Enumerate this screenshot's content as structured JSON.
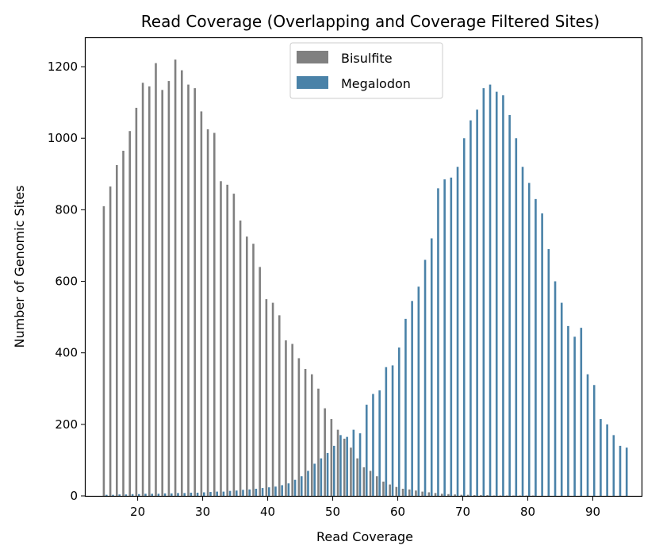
{
  "chart_data": {
    "type": "bar",
    "title": "Read Coverage (Overlapping and Coverage Filtered Sites)",
    "xlabel": "Read Coverage",
    "ylabel": "Number of Genomic Sites",
    "xlim": [
      12,
      97.5
    ],
    "ylim": [
      0,
      1280
    ],
    "xticks": [
      20,
      30,
      40,
      50,
      60,
      70,
      80,
      90
    ],
    "yticks": [
      0,
      200,
      400,
      600,
      800,
      1000,
      1200
    ],
    "grid": false,
    "legend_position": "top-center",
    "series": [
      {
        "name": "Bisulfite",
        "color": "#808080",
        "x": [
          15,
          16,
          17,
          18,
          19,
          20,
          21,
          22,
          23,
          24,
          25,
          26,
          27,
          28,
          29,
          30,
          31,
          32,
          33,
          34,
          35,
          36,
          37,
          38,
          39,
          40,
          41,
          42,
          43,
          44,
          45,
          46,
          47,
          48,
          49,
          50,
          51,
          52,
          53,
          54,
          55,
          56,
          57,
          58,
          59,
          60,
          61,
          62,
          63,
          64,
          65,
          66,
          67,
          68,
          69,
          70,
          71,
          72,
          73,
          74,
          75,
          76,
          77,
          78,
          79,
          80,
          81,
          82,
          83,
          84,
          85,
          86,
          87,
          88,
          89,
          90,
          91,
          92,
          93,
          94,
          95
        ],
        "values": [
          810,
          865,
          925,
          965,
          1020,
          1085,
          1155,
          1145,
          1210,
          1135,
          1160,
          1220,
          1190,
          1150,
          1140,
          1075,
          1025,
          1015,
          880,
          870,
          845,
          770,
          725,
          705,
          640,
          550,
          540,
          505,
          435,
          425,
          385,
          355,
          340,
          300,
          245,
          215,
          185,
          160,
          135,
          105,
          80,
          70,
          55,
          40,
          32,
          25,
          20,
          18,
          15,
          12,
          10,
          8,
          6,
          5,
          4,
          3,
          3,
          2,
          2,
          2,
          1,
          1,
          1,
          1,
          1,
          1,
          1,
          0,
          0,
          0,
          0,
          0,
          0,
          0,
          0,
          0,
          0,
          0,
          0,
          0,
          0
        ]
      },
      {
        "name": "Megalodon",
        "color": "#4a82a8",
        "x": [
          15,
          16,
          17,
          18,
          19,
          20,
          21,
          22,
          23,
          24,
          25,
          26,
          27,
          28,
          29,
          30,
          31,
          32,
          33,
          34,
          35,
          36,
          37,
          38,
          39,
          40,
          41,
          42,
          43,
          44,
          45,
          46,
          47,
          48,
          49,
          50,
          51,
          52,
          53,
          54,
          55,
          56,
          57,
          58,
          59,
          60,
          61,
          62,
          63,
          64,
          65,
          66,
          67,
          68,
          69,
          70,
          71,
          72,
          73,
          74,
          75,
          76,
          77,
          78,
          79,
          80,
          81,
          82,
          83,
          84,
          85,
          86,
          87,
          88,
          89,
          90,
          91,
          92,
          93,
          94,
          95
        ],
        "values": [
          3,
          3,
          4,
          4,
          5,
          5,
          6,
          6,
          6,
          7,
          7,
          8,
          8,
          9,
          9,
          10,
          11,
          12,
          12,
          14,
          15,
          17,
          18,
          20,
          22,
          24,
          26,
          30,
          35,
          45,
          55,
          70,
          90,
          105,
          120,
          140,
          170,
          165,
          185,
          175,
          255,
          285,
          295,
          360,
          365,
          415,
          495,
          545,
          585,
          660,
          720,
          860,
          885,
          890,
          920,
          1000,
          1050,
          1080,
          1140,
          1150,
          1130,
          1120,
          1065,
          1000,
          920,
          875,
          830,
          790,
          690,
          600,
          540,
          475,
          445,
          470,
          340,
          310,
          215,
          200,
          170,
          140,
          135
        ]
      }
    ]
  }
}
